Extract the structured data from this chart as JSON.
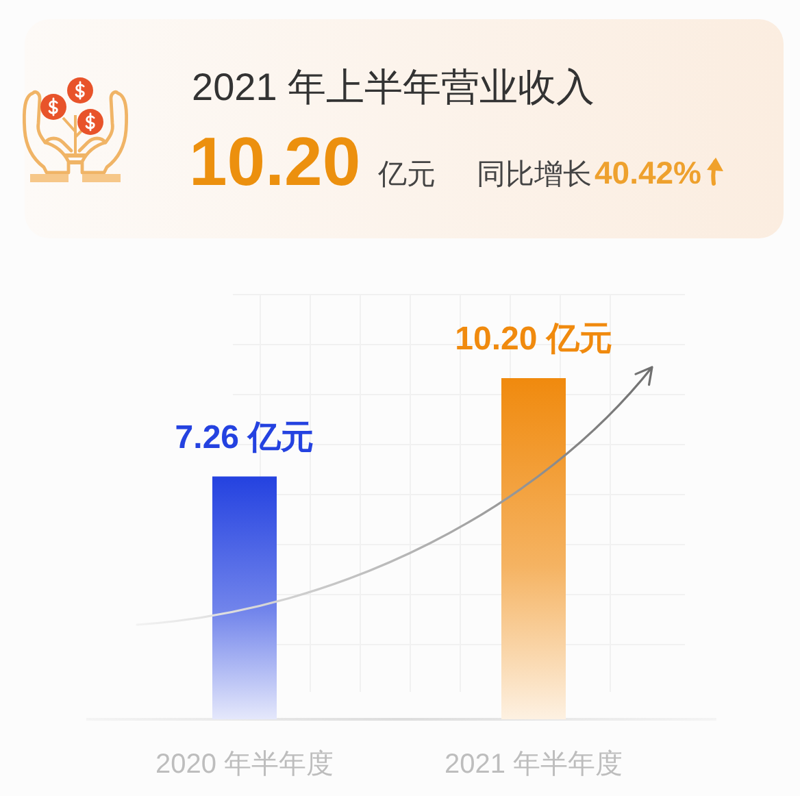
{
  "chart_data": {
    "type": "bar",
    "title": "2021 年上半年营业收入",
    "categories": [
      "2020 年半年度",
      "2021 年半年度"
    ],
    "values": [
      7.26,
      10.2
    ],
    "colors": [
      "#2442e0",
      "#f08a0e"
    ],
    "value_labels": [
      "7.26 亿元",
      "10.20 亿元"
    ],
    "annotations": [
      "10.20",
      "亿元",
      "同比增长",
      "40.42%"
    ],
    "grid": true
  }
}
